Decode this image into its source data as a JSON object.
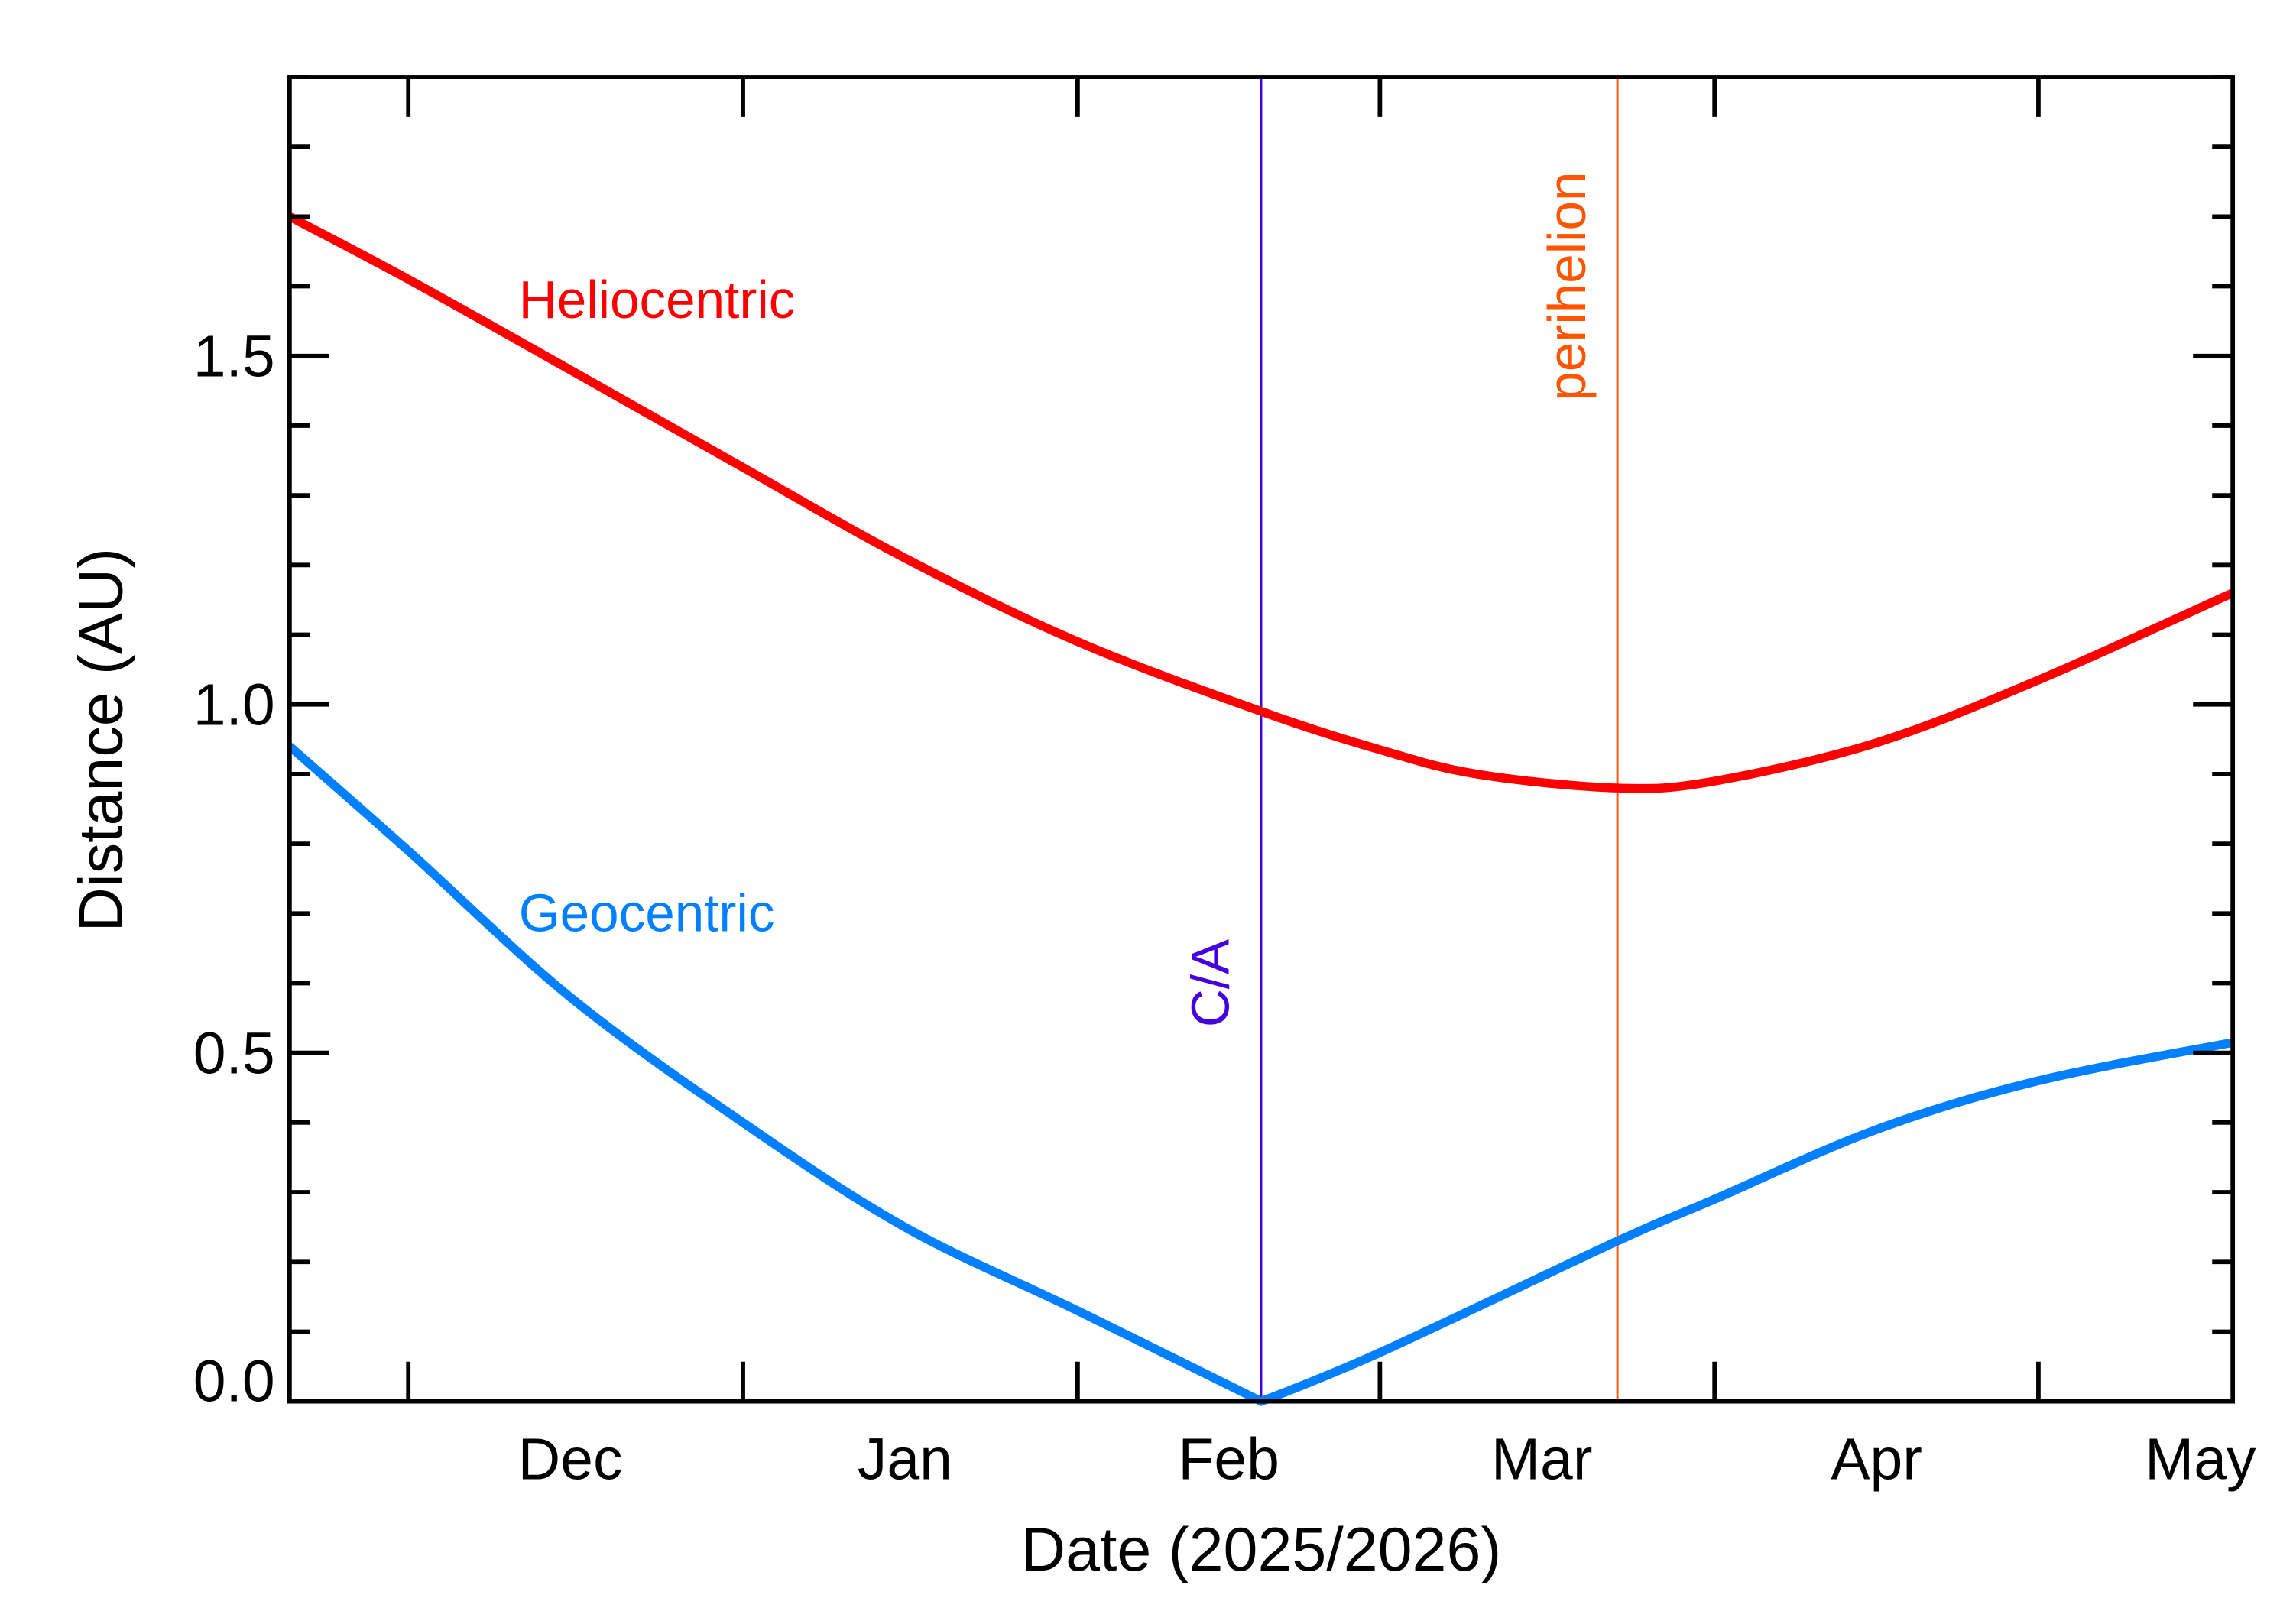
{
  "chart_data": {
    "type": "line",
    "title": "",
    "xlabel": "Date (2025/2026)",
    "ylabel": "Distance (AU)",
    "xlim": [
      "2025-11-20",
      "2026-05-19"
    ],
    "ylim": [
      0,
      1.9
    ],
    "grid": false,
    "x_tick_labels": [
      {
        "label": "Dec",
        "date": "2025-12-16"
      },
      {
        "label": "Jan",
        "date": "2026-01-16"
      },
      {
        "label": "Feb",
        "date": "2026-02-15"
      },
      {
        "label": "Mar",
        "date": "2026-03-16"
      },
      {
        "label": "Apr",
        "date": "2026-04-16"
      },
      {
        "label": "May",
        "date": "2026-05-16"
      }
    ],
    "x_major_ticks": [
      "2025-12-01",
      "2026-01-01",
      "2026-02-01",
      "2026-03-01",
      "2026-04-01",
      "2026-05-01"
    ],
    "y_tick_labels": [
      {
        "label": "0.0",
        "value": 0
      },
      {
        "label": "0.5",
        "value": 0.5
      },
      {
        "label": "1.0",
        "value": 1.0
      },
      {
        "label": "1.5",
        "value": 1.5
      }
    ],
    "y_minor_step": 0.1,
    "series": [
      {
        "name": "Heliocentric",
        "color": "#ff0000",
        "label_position": {
          "date": "2025-12-16",
          "value": 1.58
        },
        "x": [
          "2025-11-20",
          "2025-12-01",
          "2025-12-16",
          "2026-01-01",
          "2026-01-16",
          "2026-02-01",
          "2026-02-18",
          "2026-03-01",
          "2026-03-10",
          "2026-03-23",
          "2026-04-01",
          "2026-04-16",
          "2026-05-01",
          "2026-05-19"
        ],
        "y": [
          1.7,
          1.61,
          1.48,
          1.34,
          1.21,
          1.09,
          0.99,
          0.935,
          0.9,
          0.88,
          0.89,
          0.945,
          1.035,
          1.16
        ]
      },
      {
        "name": "Geocentric",
        "color": "#0080ff",
        "label_position": {
          "date": "2025-12-16",
          "value": 0.7
        },
        "x": [
          "2025-11-20",
          "2025-12-01",
          "2025-12-16",
          "2026-01-01",
          "2026-01-16",
          "2026-02-01",
          "2026-02-18",
          "2026-03-01",
          "2026-03-23",
          "2026-04-01",
          "2026-04-16",
          "2026-05-01",
          "2026-05-19"
        ],
        "y": [
          0.94,
          0.79,
          0.58,
          0.4,
          0.25,
          0.13,
          0.0,
          0.07,
          0.23,
          0.29,
          0.39,
          0.46,
          0.515
        ]
      }
    ],
    "annotations": [
      {
        "label": "C/A",
        "date": "2026-02-18",
        "color": "#4400dd",
        "label_value": 0.6
      },
      {
        "label": "perihelion",
        "date": "2026-03-23",
        "color": "#ff5500",
        "label_value": 1.6
      }
    ]
  }
}
